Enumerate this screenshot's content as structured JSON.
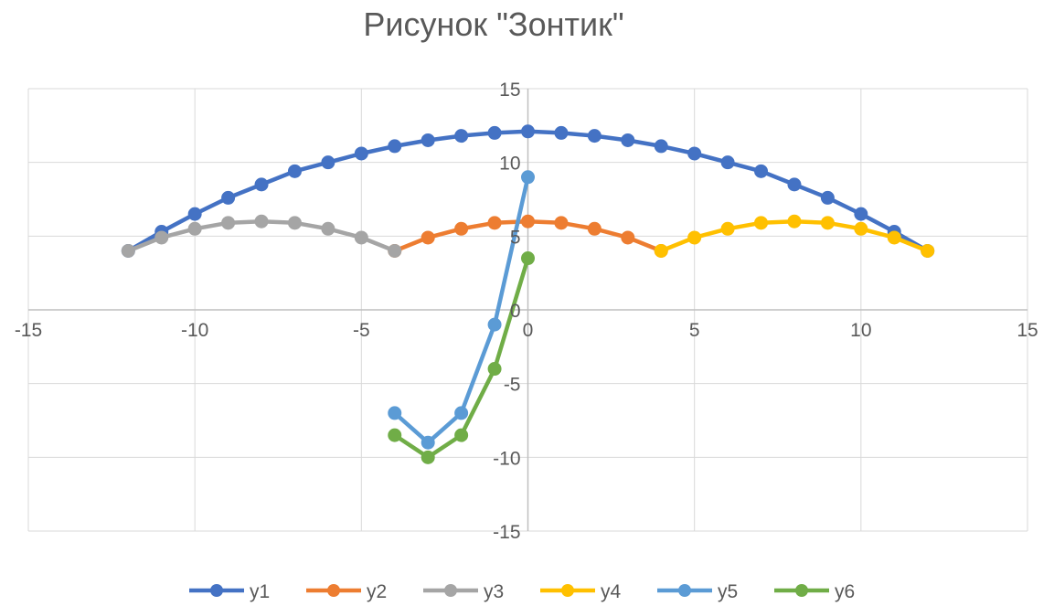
{
  "chart_data": {
    "type": "scatter",
    "title": "Рисунок \"Зонтик\"",
    "xlabel": "",
    "ylabel": "",
    "xlim": [
      -15,
      15
    ],
    "ylim": [
      -15,
      15
    ],
    "xticks": [
      -15,
      -10,
      -5,
      0,
      5,
      10,
      15
    ],
    "yticks": [
      -15,
      -10,
      -5,
      0,
      5,
      10,
      15
    ],
    "grid": true,
    "legend_position": "bottom",
    "series": [
      {
        "name": "y1",
        "color": "#4472C4",
        "points": [
          [
            -12,
            4
          ],
          [
            -11,
            5.3
          ],
          [
            -10,
            6.5
          ],
          [
            -9,
            7.6
          ],
          [
            -8,
            8.5
          ],
          [
            -7,
            9.4
          ],
          [
            -6,
            10.0
          ],
          [
            -5,
            10.6
          ],
          [
            -4,
            11.1
          ],
          [
            -3,
            11.5
          ],
          [
            -2,
            11.8
          ],
          [
            -1,
            12.0
          ],
          [
            0,
            12.1
          ],
          [
            1,
            12.0
          ],
          [
            2,
            11.8
          ],
          [
            3,
            11.5
          ],
          [
            4,
            11.1
          ],
          [
            5,
            10.6
          ],
          [
            6,
            10.0
          ],
          [
            7,
            9.4
          ],
          [
            8,
            8.5
          ],
          [
            9,
            7.6
          ],
          [
            10,
            6.5
          ],
          [
            11,
            5.3
          ],
          [
            12,
            4
          ]
        ]
      },
      {
        "name": "y2",
        "color": "#ED7D31",
        "points": [
          [
            -4,
            4
          ],
          [
            -3,
            4.9
          ],
          [
            -2,
            5.5
          ],
          [
            -1,
            5.9
          ],
          [
            0,
            6
          ],
          [
            1,
            5.9
          ],
          [
            2,
            5.5
          ],
          [
            3,
            4.9
          ],
          [
            4,
            4
          ]
        ]
      },
      {
        "name": "y3",
        "color": "#A5A5A5",
        "points": [
          [
            -12,
            4
          ],
          [
            -11,
            4.9
          ],
          [
            -10,
            5.5
          ],
          [
            -9,
            5.9
          ],
          [
            -8,
            6
          ],
          [
            -7,
            5.9
          ],
          [
            -6,
            5.5
          ],
          [
            -5,
            4.9
          ],
          [
            -4,
            4
          ]
        ]
      },
      {
        "name": "y4",
        "color": "#FFC000",
        "points": [
          [
            4,
            4
          ],
          [
            5,
            4.9
          ],
          [
            6,
            5.5
          ],
          [
            7,
            5.9
          ],
          [
            8,
            6
          ],
          [
            9,
            5.9
          ],
          [
            10,
            5.5
          ],
          [
            11,
            4.9
          ],
          [
            12,
            4
          ]
        ]
      },
      {
        "name": "y5",
        "color": "#5B9BD5",
        "points": [
          [
            -4,
            -7
          ],
          [
            -3,
            -9
          ],
          [
            -2,
            -7
          ],
          [
            -1,
            -1
          ],
          [
            0,
            9
          ]
        ]
      },
      {
        "name": "y6",
        "color": "#70AD47",
        "points": [
          [
            -4,
            -8.5
          ],
          [
            -3,
            -10
          ],
          [
            -2,
            -8.5
          ],
          [
            -1,
            -4
          ],
          [
            0,
            3.5
          ]
        ]
      }
    ]
  }
}
